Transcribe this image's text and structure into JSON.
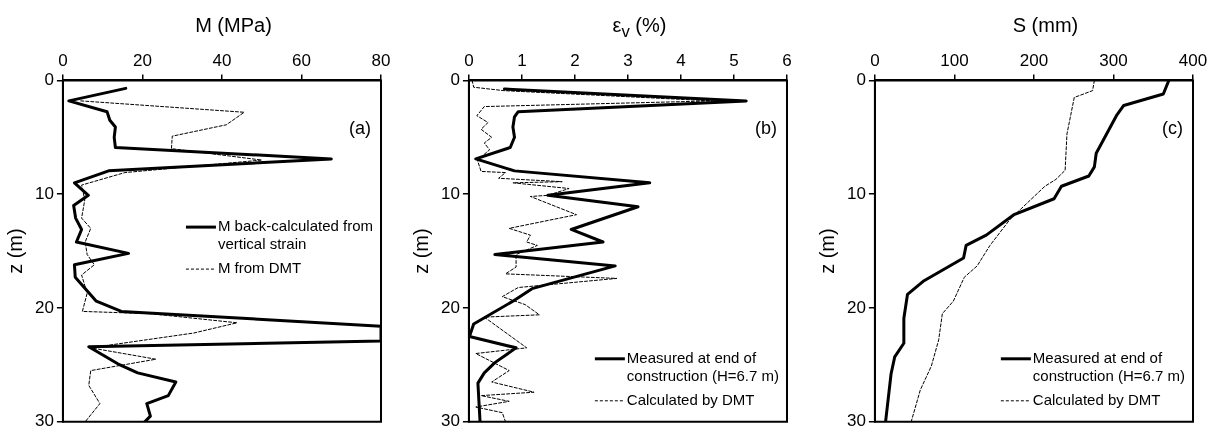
{
  "chart_data": [
    {
      "type": "line",
      "xlabel": "M (MPa)",
      "ylabel": "z (m)",
      "xlim": [
        0,
        80
      ],
      "xticks": [
        0,
        20,
        40,
        60,
        80
      ],
      "ylim": [
        30,
        0
      ],
      "yticks": [
        0,
        10,
        20,
        30
      ],
      "grid": false,
      "legend": "right",
      "annotations": [
        "(a)"
      ],
      "series": [
        {
          "name": "M back-calculated from vertical strain",
          "color": "#000000",
          "line_style": "solid",
          "x": [
            15.8,
            1.5,
            11.1,
            11.8,
            13.2,
            12.9,
            13.2,
            67.5,
            11.5,
            2.9,
            6.4,
            2.7,
            3.2,
            4.7,
            3.4,
            16.5,
            2.9,
            3.1,
            8.4,
            14.7,
            80,
            80,
            6.5,
            13.8,
            18.8,
            28.4,
            26.5,
            21.1,
            22,
            20.6
          ],
          "values": [
            0.7,
            1.8,
            2.75,
            3.5,
            4.1,
            5.0,
            5.9,
            6.9,
            7.95,
            9.0,
            10.1,
            11.0,
            12.1,
            13.1,
            14.2,
            15.2,
            16.2,
            17.3,
            19.4,
            20.3,
            21.6,
            22.9,
            23.4,
            24.9,
            25.7,
            26.5,
            27.7,
            28.4,
            29.5,
            30
          ]
        },
        {
          "name": "M from DMT",
          "color": "#000000",
          "line_style": "dashed",
          "x": [
            4.5,
            45.6,
            41.1,
            27.5,
            27.3,
            50,
            15.6,
            4.7,
            5.5,
            4.7,
            7,
            5.6,
            6.1,
            7.9,
            4.7,
            6.1,
            4.9,
            22,
            43.8,
            32.9,
            12.9,
            7,
            23.4,
            7,
            6.5,
            9.3,
            5.6
          ],
          "values": [
            1.8,
            2.8,
            3.9,
            4.9,
            6.0,
            7.0,
            8.1,
            9.2,
            10.5,
            12.1,
            13.0,
            14.2,
            15.3,
            16.2,
            17.1,
            18.7,
            20.3,
            20.5,
            21.3,
            22.2,
            23.2,
            23.5,
            24.5,
            25.5,
            26.8,
            28.4,
            30
          ]
        }
      ]
    },
    {
      "type": "line",
      "xlabel": "ε$_{v}$ (%)",
      "ylabel": "z (m)",
      "xlim": [
        0,
        6
      ],
      "xticks": [
        0,
        1,
        2,
        3,
        4,
        5,
        6
      ],
      "ylim": [
        30,
        0
      ],
      "yticks": [
        0,
        10,
        20,
        30
      ],
      "grid": false,
      "legend": "bottom right",
      "annotations": [
        "(b)"
      ],
      "series": [
        {
          "name": "Measured at end of construction (H=6.7 m)",
          "color": "#000000",
          "line_style": "solid",
          "x": [
            0.67,
            5.23,
            0.93,
            0.86,
            0.83,
            0.86,
            0.78,
            0.13,
            0.86,
            3.41,
            1.49,
            3.19,
            1.93,
            2.53,
            0.49,
            2.76,
            1.19,
            0.83,
            0.09,
            0.01,
            0.89,
            0.49,
            0.29,
            0.17,
            0.19,
            0.21
          ],
          "values": [
            0.76,
            1.8,
            2.75,
            3.2,
            4.1,
            5.0,
            5.9,
            6.9,
            7.95,
            9.0,
            10.1,
            11.1,
            13.1,
            14.2,
            15.3,
            16.3,
            18.3,
            19.4,
            21.4,
            22.5,
            23.5,
            24.8,
            25.7,
            26.6,
            28.3,
            30
          ]
        },
        {
          "name": "Calculated by DMT",
          "color": "#000000",
          "line_style": "dashed",
          "x": [
            0.06,
            0.09,
            0.66,
            4.6,
            0.29,
            0.15,
            0.36,
            0.23,
            0.43,
            0.29,
            0.39,
            0.16,
            0.23,
            0.69,
            0.56,
            1.76,
            0.83,
            1.89,
            1.49,
            1.16,
            2.03,
            0.76,
            1.16,
            1.09,
            1.29,
            0.89,
            0.89,
            0.69,
            2.79,
            0.93,
            0.63,
            1.06,
            1.33,
            0.29,
            1.09,
            0.13,
            0.76,
            0.43,
            1.23,
            0.23,
            0.76,
            0.13,
            0.63,
            0.69
          ],
          "values": [
            0,
            0.6,
            0.9,
            1.8,
            2.3,
            3.1,
            3.7,
            4.3,
            5.0,
            5.5,
            6.1,
            7.0,
            8.0,
            8.1,
            8.6,
            8.9,
            9.0,
            9.5,
            10.1,
            10.2,
            11.8,
            13.0,
            13.6,
            14.2,
            14.5,
            15.3,
            16.4,
            17.0,
            17.4,
            18.2,
            19.0,
            19.7,
            20.6,
            20.8,
            23.5,
            24.0,
            25.5,
            26.5,
            27.4,
            27.7,
            28.2,
            28.7,
            29.2,
            30
          ]
        }
      ]
    },
    {
      "type": "line",
      "xlabel": "S (mm)",
      "ylabel": "z (m)",
      "xlim": [
        0,
        400
      ],
      "xticks": [
        0,
        100,
        200,
        300,
        400
      ],
      "ylim": [
        30,
        0
      ],
      "yticks": [
        0,
        10,
        20,
        30
      ],
      "grid": false,
      "legend": "bottom right",
      "annotations": [
        "(c)"
      ],
      "series": [
        {
          "name": "Measured at end of construction (H=6.7 m)",
          "color": "#000000",
          "line_style": "solid",
          "x": [
            369.6,
            362.7,
            312.9,
            303.7,
            278.3,
            276,
            269,
            234.6,
            225.3,
            174.7,
            140,
            114.7,
            111.5,
            61.8,
            41,
            36.4,
            36.4,
            24.9,
            20.3,
            13.4
          ],
          "values": [
            0,
            1.2,
            2.2,
            3.1,
            6.4,
            7.6,
            8.4,
            9.3,
            10.4,
            11.8,
            13.6,
            14.5,
            15.6,
            17.6,
            18.8,
            20.9,
            23.1,
            24.3,
            25.8,
            30
          ]
        },
        {
          "name": "Calculated by DMT",
          "color": "#000000",
          "line_style": "dashed",
          "x": [
            276,
            273.7,
            250.7,
            248.4,
            241.5,
            239.2,
            227.6,
            213.8,
            170,
            144.7,
            128.6,
            112.4,
            98.6,
            84.8,
            80.2,
            71,
            57.1,
            45.6
          ],
          "values": [
            0,
            0.9,
            1.5,
            2.3,
            4.7,
            7.9,
            8.7,
            9.3,
            12.2,
            14.5,
            16.3,
            17.3,
            19.4,
            20.5,
            22.8,
            25.1,
            27.2,
            30
          ]
        }
      ]
    }
  ]
}
